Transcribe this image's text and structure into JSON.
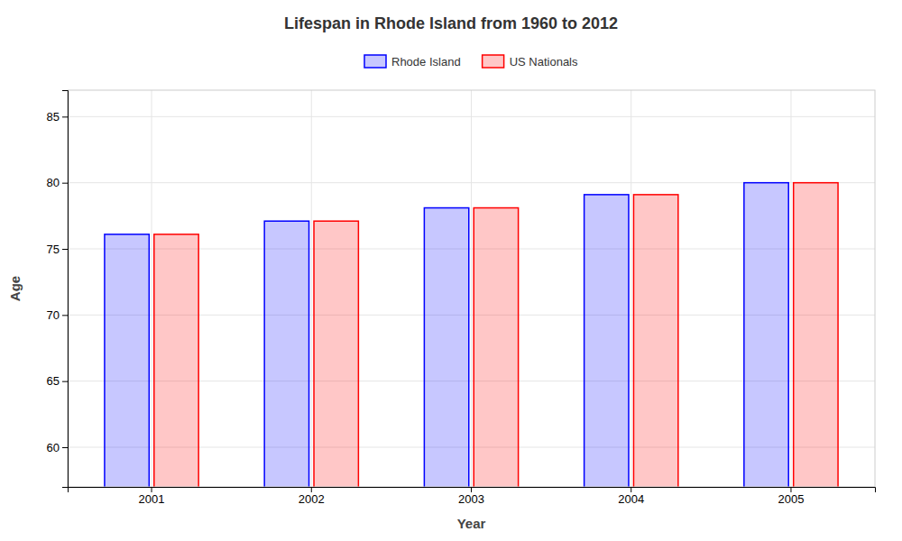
{
  "chart_data": {
    "type": "bar",
    "title": "Lifespan in Rhode Island from 1960 to 2012",
    "xlabel": "Year",
    "ylabel": "Age",
    "categories": [
      "2001",
      "2002",
      "2003",
      "2004",
      "2005"
    ],
    "series": [
      {
        "name": "Rhode Island",
        "color": "#0000ff",
        "values": [
          76.1,
          77.1,
          78.1,
          79.1,
          80.0
        ]
      },
      {
        "name": "US Nationals",
        "color": "#ff0000",
        "values": [
          76.1,
          77.1,
          78.1,
          79.1,
          80.0
        ]
      }
    ],
    "ylim": [
      57,
      87
    ],
    "yticks": [
      60,
      65,
      70,
      75,
      80,
      85
    ],
    "grid": true,
    "legend": "top"
  }
}
